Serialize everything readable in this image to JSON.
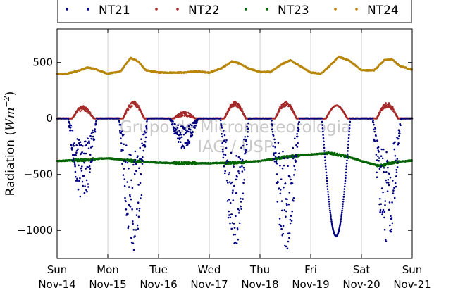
{
  "chart_data": {
    "type": "scatter",
    "title": "",
    "ylabel": "Radiation (Wm^-2)",
    "ylabel_parts": {
      "main": "Radiation (",
      "sym": "Wm",
      "exp": "−2",
      "close": ")"
    },
    "xlabel": "",
    "x_unit": "day",
    "x_range": [
      0,
      7
    ],
    "ylim": [
      -1250,
      800
    ],
    "y_ticks": [
      500,
      0,
      -500,
      -1000
    ],
    "y_tick_labels": [
      "500",
      "0",
      "−500",
      "−1000"
    ],
    "x_ticks": [
      0,
      1,
      2,
      3,
      4,
      5,
      6,
      7
    ],
    "x_tick_labels": [
      {
        "day": "Sun",
        "date": "Nov-14"
      },
      {
        "day": "Mon",
        "date": "Nov-15"
      },
      {
        "day": "Tue",
        "date": "Nov-16"
      },
      {
        "day": "Wed",
        "date": "Nov-17"
      },
      {
        "day": "Thu",
        "date": "Nov-18"
      },
      {
        "day": "Fri",
        "date": "Nov-19"
      },
      {
        "day": "Sat",
        "date": "Nov-20"
      },
      {
        "day": "Sun",
        "date": "Nov-21"
      }
    ],
    "grid": "vertical",
    "legend_position": "top",
    "watermark": [
      "Grupo de Micrometeorologia",
      "IAG / USP"
    ],
    "series": [
      {
        "name": "NT21",
        "color": "#000080",
        "baseline": 0,
        "daily_min": [
          -780,
          -1180,
          -270,
          -1170,
          -1210,
          -1050,
          -1150
        ],
        "noisy": [
          true,
          true,
          true,
          true,
          true,
          false,
          true
        ]
      },
      {
        "name": "NT22",
        "color": "#a52a2a",
        "baseline": 0,
        "daily_max": [
          90,
          130,
          40,
          130,
          130,
          115,
          120
        ]
      },
      {
        "name": "NT23",
        "color": "#006400",
        "baseline": -390,
        "points": [
          [
            0,
            -380
          ],
          [
            0.5,
            -370
          ],
          [
            1,
            -355
          ],
          [
            1.5,
            -380
          ],
          [
            2,
            -395
          ],
          [
            2.5,
            -400
          ],
          [
            3,
            -400
          ],
          [
            3.5,
            -395
          ],
          [
            4,
            -380
          ],
          [
            4.5,
            -345
          ],
          [
            5,
            -320
          ],
          [
            5.4,
            -310
          ],
          [
            5.8,
            -350
          ],
          [
            6,
            -380
          ],
          [
            6.35,
            -425
          ],
          [
            6.6,
            -395
          ],
          [
            7,
            -375
          ]
        ]
      },
      {
        "name": "NT24",
        "color": "#b8860b",
        "points": [
          [
            0,
            395
          ],
          [
            0.2,
            400
          ],
          [
            0.45,
            430
          ],
          [
            0.6,
            455
          ],
          [
            0.75,
            440
          ],
          [
            1,
            400
          ],
          [
            1.25,
            420
          ],
          [
            1.45,
            540
          ],
          [
            1.6,
            510
          ],
          [
            1.75,
            430
          ],
          [
            2,
            410
          ],
          [
            2.5,
            410
          ],
          [
            2.75,
            420
          ],
          [
            3,
            410
          ],
          [
            3.25,
            450
          ],
          [
            3.45,
            510
          ],
          [
            3.6,
            490
          ],
          [
            3.75,
            450
          ],
          [
            4,
            415
          ],
          [
            4.2,
            415
          ],
          [
            4.45,
            490
          ],
          [
            4.6,
            520
          ],
          [
            4.75,
            480
          ],
          [
            5,
            410
          ],
          [
            5.2,
            400
          ],
          [
            5.4,
            480
          ],
          [
            5.55,
            550
          ],
          [
            5.75,
            520
          ],
          [
            6,
            430
          ],
          [
            6.25,
            430
          ],
          [
            6.45,
            520
          ],
          [
            6.6,
            530
          ],
          [
            6.75,
            470
          ],
          [
            7,
            435
          ]
        ]
      }
    ]
  }
}
